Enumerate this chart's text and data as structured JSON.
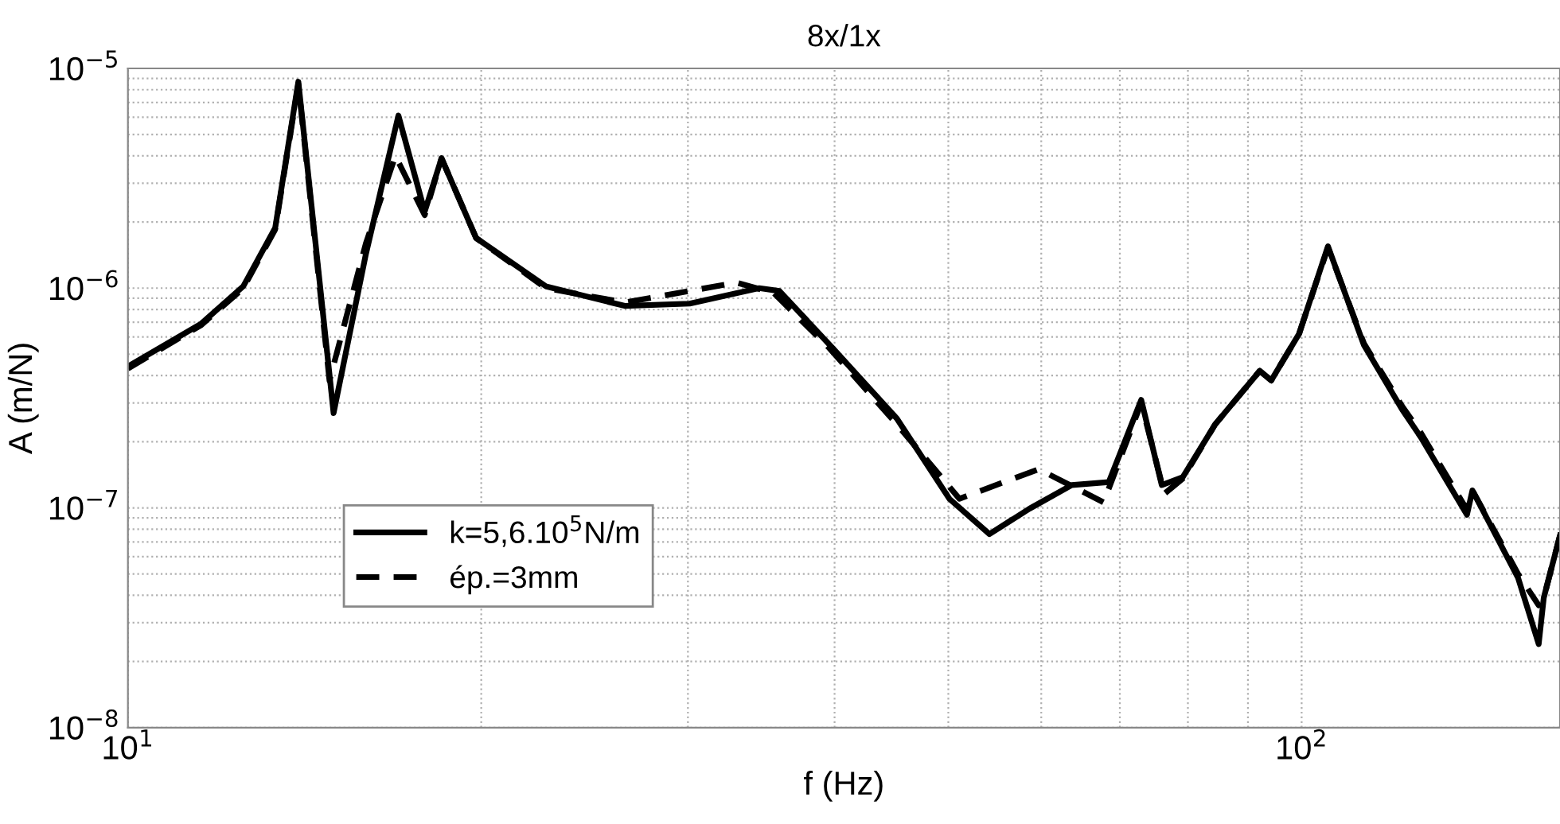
{
  "chart_data": {
    "type": "line",
    "title": "8x/1x",
    "xlabel": "f (Hz)",
    "ylabel": "A (m/N)",
    "log": "xy",
    "xlim": [
      10,
      166
    ],
    "ylim": [
      1e-08,
      1e-05
    ],
    "xticks": [
      {
        "value": 10,
        "label": "10$^{1}$"
      },
      {
        "value": 100,
        "label": "10$^{2}$"
      }
    ],
    "yticks": [
      {
        "value": 1e-08,
        "label": "10$^{−8}$"
      },
      {
        "value": 1e-07,
        "label": "10$^{−7}$"
      },
      {
        "value": 1e-06,
        "label": "10$^{−6}$"
      },
      {
        "value": 1e-05,
        "label": "10$^{−5}$"
      }
    ],
    "grid": true,
    "legend": "bottom left",
    "marker": "none",
    "series": [
      {
        "name": "k=5,6.10$^{5}$N/m",
        "color": "#000000",
        "line_style": "solid",
        "x": [
          10,
          11.55,
          12.54,
          13.35,
          13.97,
          14.97,
          15.95,
          17.0,
          17.9,
          18.5,
          19.8,
          22.7,
          26.5,
          30.1,
          34.5,
          35.9,
          39.9,
          45.2,
          50.1,
          54.2,
          58.6,
          63.7,
          68.5,
          73.0,
          76.0,
          79.2,
          84.4,
          92.1,
          94.2,
          99.5,
          105.3,
          113.0,
          121.8,
          126.3,
          138.3,
          139.8,
          152.9,
          159.2,
          160.8,
          166
        ],
        "values": [
          4.4e-07,
          6.9e-07,
          1.02e-06,
          1.88e-06,
          8.7e-06,
          2.7e-07,
          1.43e-06,
          6.1e-06,
          2.23e-06,
          3.9e-06,
          1.69e-06,
          1.02e-06,
          8.3e-07,
          8.5e-07,
          1e-06,
          9.7e-07,
          5.3e-07,
          2.55e-07,
          1.1e-07,
          7.6e-08,
          9.9e-08,
          1.27e-07,
          1.31e-07,
          3.1e-07,
          1.27e-07,
          1.38e-07,
          2.4e-07,
          4.2e-07,
          3.8e-07,
          6.2e-07,
          1.55e-06,
          5.5e-07,
          2.8e-07,
          2.1e-07,
          9.3e-08,
          1.2e-07,
          4.8e-08,
          2.4e-08,
          3.9e-08,
          7.5e-08
        ]
      },
      {
        "name": "ép.=3mm",
        "color": "#000000",
        "line_style": "dashed",
        "x": [
          10,
          11.55,
          12.54,
          13.35,
          13.97,
          14.85,
          15.95,
          16.9,
          17.9,
          18.5,
          19.8,
          22.7,
          26.5,
          33.0,
          35.5,
          39.5,
          45.2,
          51.1,
          59.7,
          67.8,
          73.0,
          76.4,
          79.2,
          84.4,
          92.1,
          94.2,
          99.5,
          105.3,
          113.0,
          121.8,
          126.3,
          138.3,
          139.8,
          152.9,
          159.2,
          160.8,
          166
        ],
        "values": [
          4.3e-07,
          6.8e-07,
          1e-06,
          1.85e-06,
          8.5e-06,
          3.8e-07,
          1.6e-06,
          4e-06,
          2.15e-06,
          3.9e-06,
          1.69e-06,
          1e-06,
          8.6e-07,
          1.06e-06,
          9.5e-07,
          5.4e-07,
          2.4e-07,
          1.1e-07,
          1.5e-07,
          1.06e-07,
          3e-07,
          1.16e-07,
          1.36e-07,
          2.4e-07,
          4.2e-07,
          3.8e-07,
          6.2e-07,
          1.53e-06,
          5.6e-07,
          2.9e-07,
          2.2e-07,
          9.8e-08,
          1.2e-07,
          5e-08,
          3.6e-08,
          3.9e-08,
          7.5e-08
        ]
      }
    ]
  }
}
